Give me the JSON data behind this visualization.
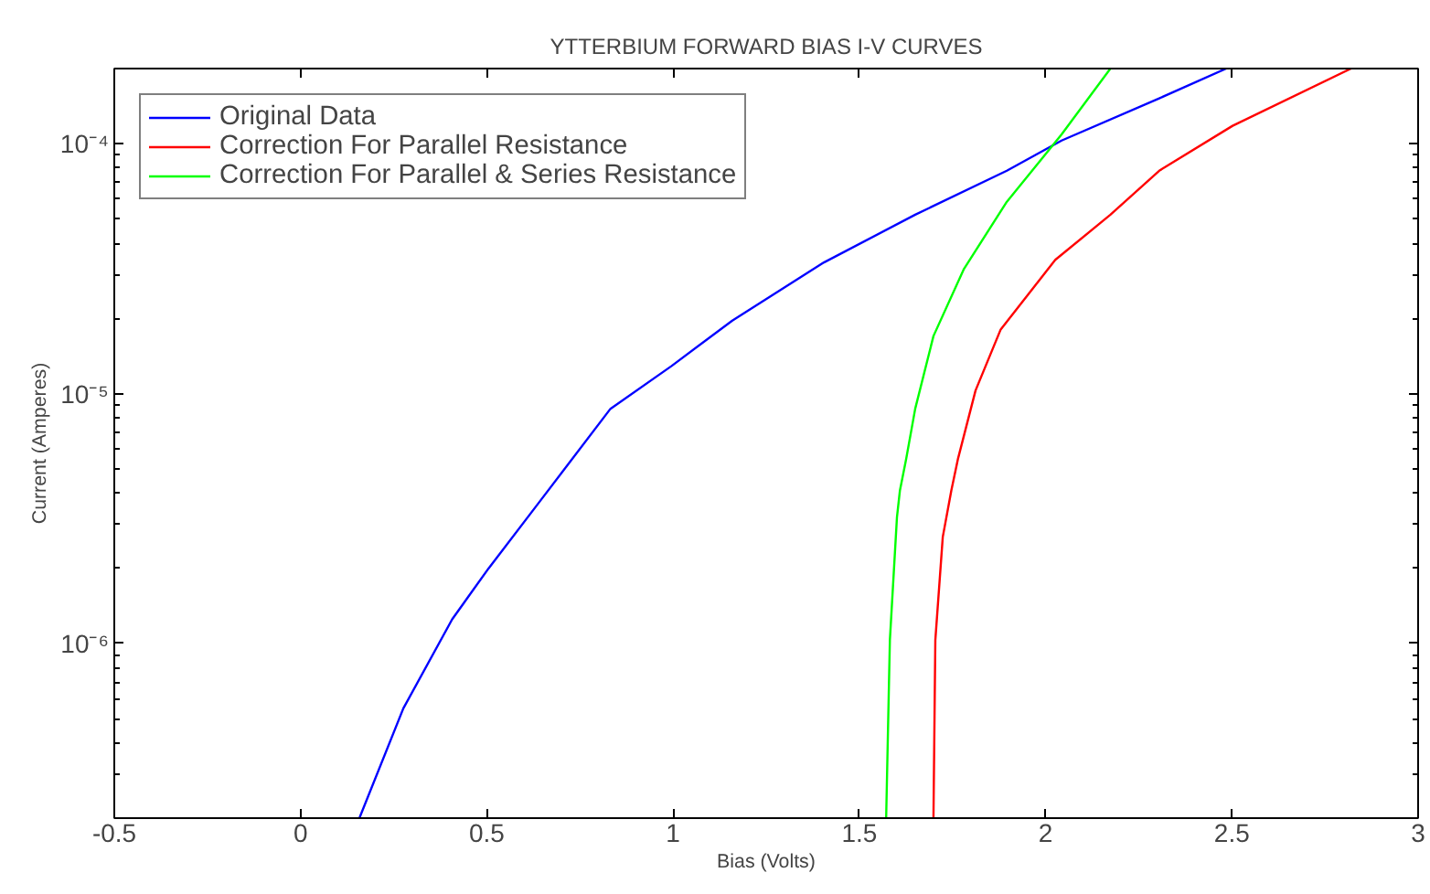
{
  "chart_data": {
    "type": "line",
    "title": "YTTERBIUM FORWARD BIAS I-V CURVES",
    "xlabel": "Bias (Volts)",
    "ylabel": "Current (Amperes)",
    "log": "y",
    "xlim": [
      -0.5,
      3
    ],
    "ylim": [
      2e-07,
      0.0002
    ],
    "xticks": [
      -0.5,
      0,
      0.5,
      1,
      1.5,
      2,
      2.5,
      3
    ],
    "yticks": [
      {
        "value": 1e-06,
        "label": "10⁻⁶"
      },
      {
        "value": 1e-05,
        "label": "10⁻⁵"
      },
      {
        "value": 0.0001,
        "label": "10⁻⁴"
      }
    ],
    "grid": false,
    "legend": "top left",
    "marker": "none",
    "line_style": "solid",
    "series": [
      {
        "name": "Original Data",
        "color": "#0000ff",
        "x": [
          0.158,
          0.276,
          0.407,
          0.505,
          0.636,
          0.832,
          0.996,
          1.159,
          1.405,
          1.65,
          1.896,
          2.043,
          2.305,
          2.485
        ],
        "values": [
          2e-07,
          5.5e-07,
          1.25e-06,
          2e-06,
          3.6e-06,
          8.7e-06,
          1.29e-05,
          1.96e-05,
          3.35e-05,
          5.2e-05,
          7.8e-05,
          0.000103,
          0.000152,
          0.0002
        ]
      },
      {
        "name": "Correction For Parallel Resistance",
        "color": "#ff0000",
        "x": [
          1.699,
          1.704,
          1.724,
          1.747,
          1.765,
          1.812,
          1.879,
          2.026,
          2.174,
          2.305,
          2.502,
          2.82
        ],
        "values": [
          2e-07,
          1.03e-06,
          2.67e-06,
          4.1e-06,
          5.5e-06,
          1.03e-05,
          1.8e-05,
          3.43e-05,
          5.2e-05,
          7.8e-05,
          0.000118,
          0.0002
        ]
      },
      {
        "name": "Correction For Parallel & Series Resistance",
        "color": "#00ff00",
        "x": [
          1.572,
          1.582,
          1.601,
          1.609,
          1.626,
          1.65,
          1.699,
          1.781,
          1.896,
          2.043,
          2.174
        ],
        "values": [
          2e-07,
          1.03e-06,
          3.2e-06,
          4.1e-06,
          5.5e-06,
          8.7e-06,
          1.7e-05,
          3.16e-05,
          5.86e-05,
          0.000109,
          0.0002
        ]
      }
    ]
  }
}
